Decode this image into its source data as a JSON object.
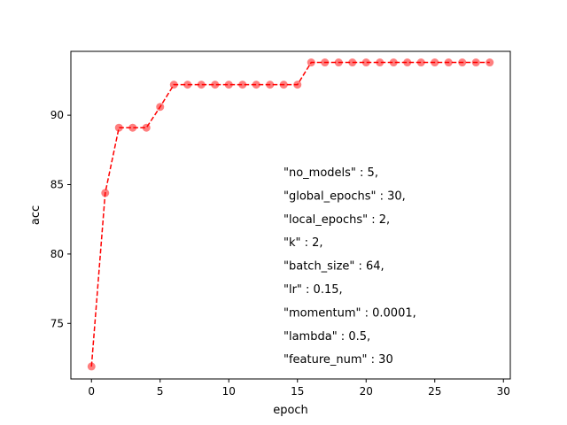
{
  "chart_data": {
    "type": "line",
    "xlabel": "epoch",
    "ylabel": "acc",
    "xlim": [
      -1.5,
      30.5
    ],
    "ylim": [
      71.0,
      94.6
    ],
    "xticks": [
      0,
      5,
      10,
      15,
      20,
      25,
      30
    ],
    "yticks": [
      75,
      80,
      85,
      90
    ],
    "grid": false,
    "series": [
      {
        "color": "#ff0000",
        "line_style": "dashed",
        "marker": "circle",
        "x": [
          0,
          1,
          2,
          3,
          4,
          5,
          6,
          7,
          8,
          9,
          10,
          11,
          12,
          13,
          14,
          15,
          16,
          17,
          18,
          19,
          20,
          21,
          22,
          23,
          24,
          25,
          26,
          27,
          28,
          29
        ],
        "y": [
          71.9,
          84.4,
          89.1,
          89.1,
          89.1,
          90.6,
          92.2,
          92.2,
          92.2,
          92.2,
          92.2,
          92.2,
          92.2,
          92.2,
          92.2,
          92.2,
          93.8,
          93.8,
          93.8,
          93.8,
          93.8,
          93.8,
          93.8,
          93.8,
          93.8,
          93.8,
          93.8,
          93.8,
          93.8,
          93.8
        ]
      }
    ],
    "annotation": {
      "lines": [
        "\"no_models\" : 5,",
        "\"global_epochs\" : 30,",
        "\"local_epochs\" : 2,",
        "\"k\" : 2,",
        "\"batch_size\" : 64,",
        "\"lr\" : 0.15,",
        "\"momentum\" : 0.0001,",
        "\"lambda\" : 0.5,",
        "\"feature_num\" : 30"
      ]
    }
  }
}
